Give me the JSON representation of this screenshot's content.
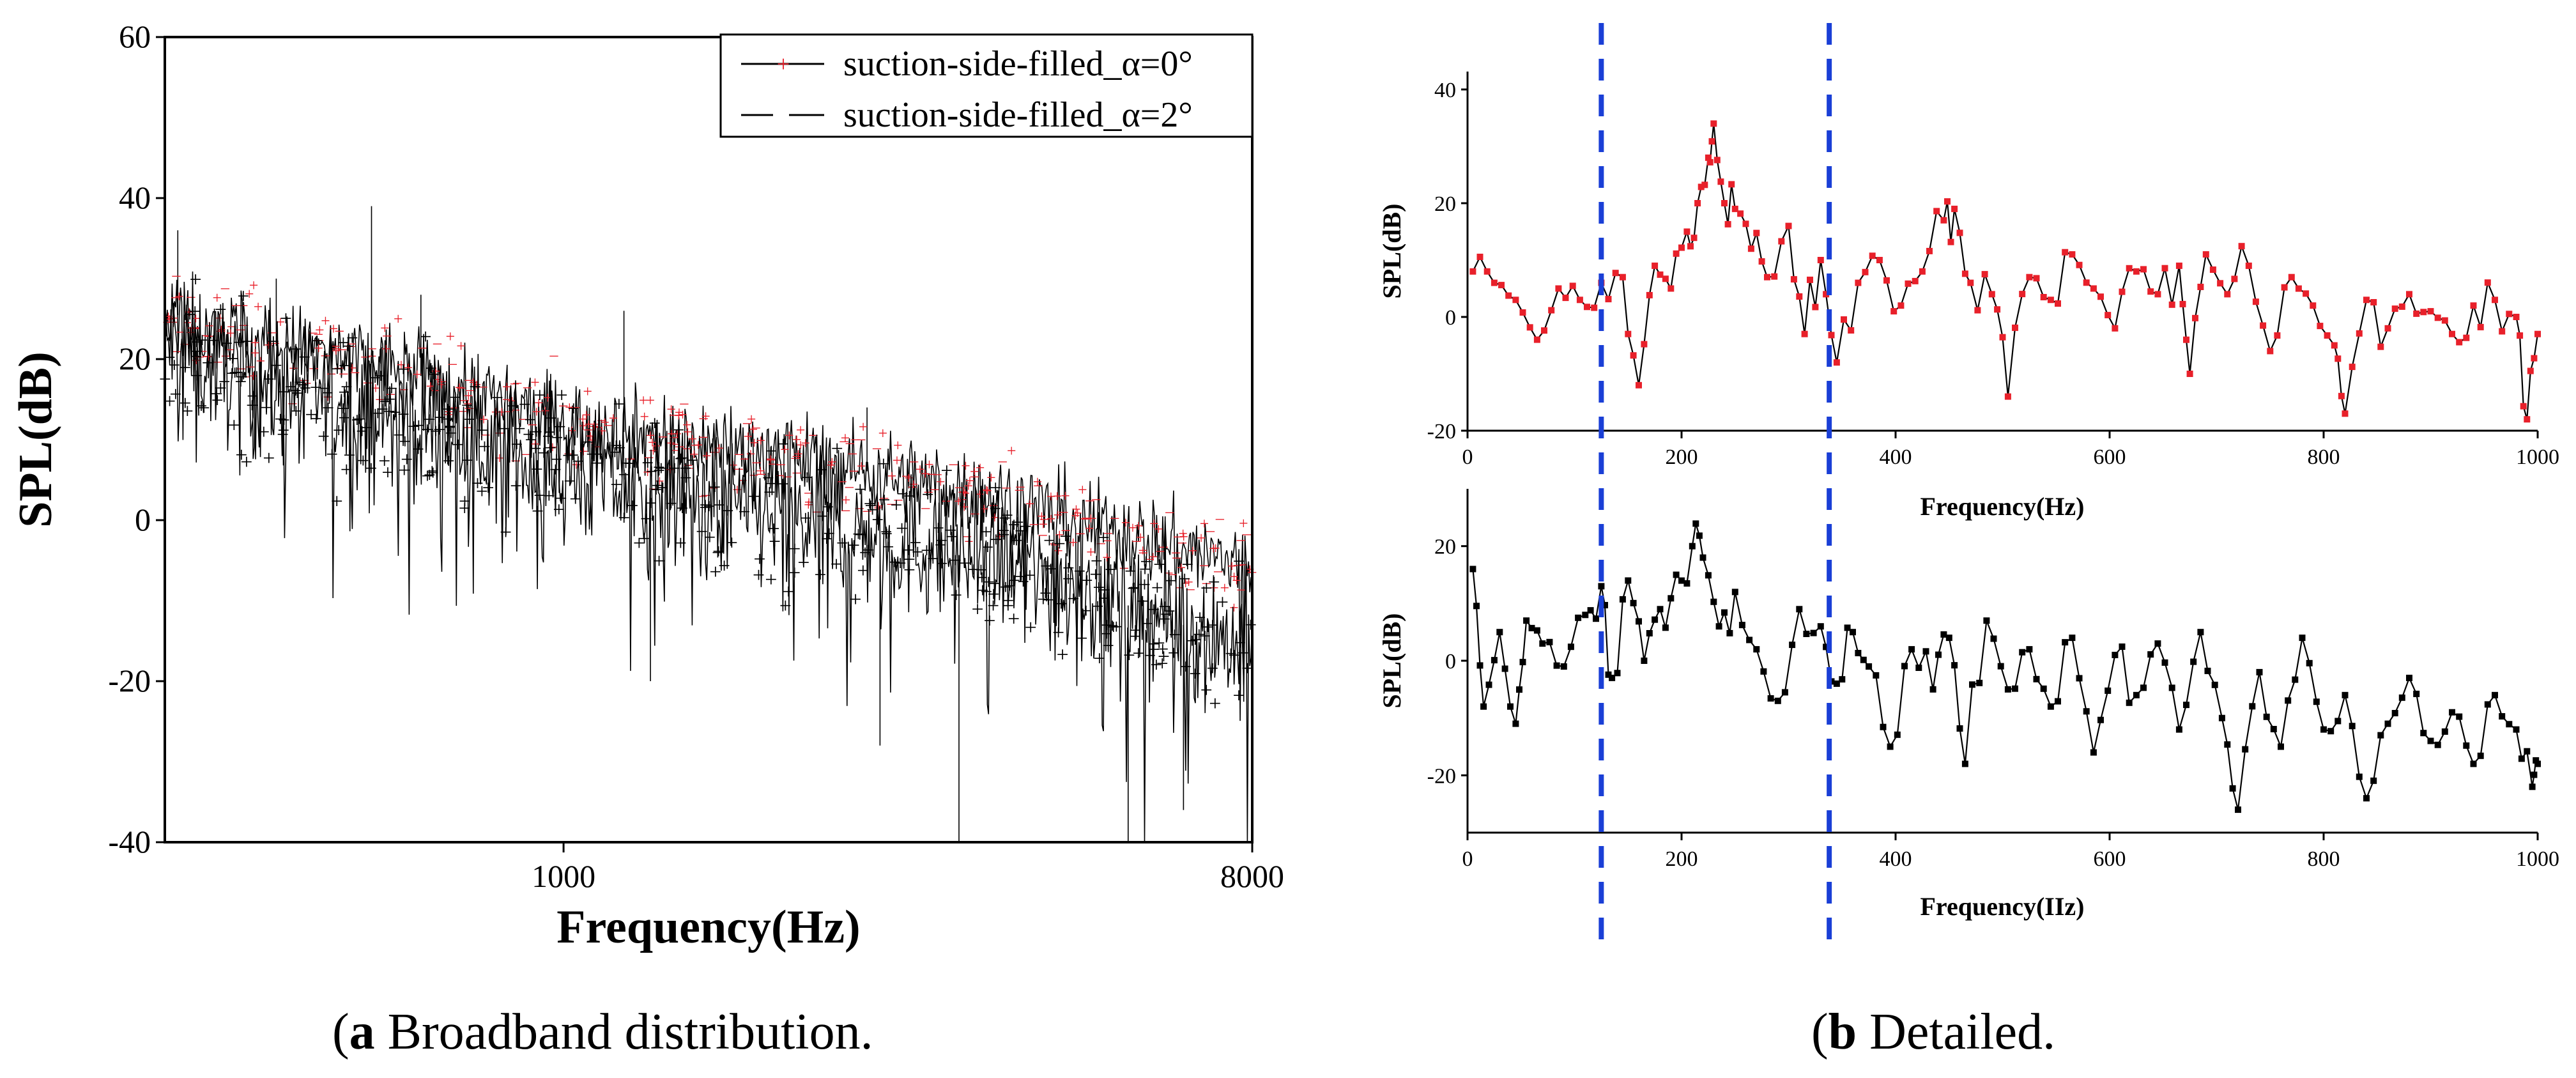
{
  "colors": {
    "alpha0": "#e8202a",
    "alpha2": "#000000",
    "marker_line": "#1a3fd6",
    "axis": "#000000"
  },
  "captions": {
    "a": {
      "letter": "a",
      "text": " Broadband distribution."
    },
    "b": {
      "letter": "b",
      "text": " Detailed."
    }
  },
  "chart_data": [
    {
      "id": "a",
      "type": "line",
      "xlabel": "Frequency(Hz)",
      "ylabel": "SPL(dB)",
      "xscale": "log",
      "xlim": [
        300,
        8000
      ],
      "ylim": [
        -40,
        60
      ],
      "xticks": [
        1000,
        8000
      ],
      "xtick_labels": [
        "1000",
        "8000"
      ],
      "yticks": [
        -40,
        -20,
        0,
        20,
        40,
        60
      ],
      "ytick_labels": [
        "-40",
        "-20",
        "0",
        "20",
        "40",
        "60"
      ],
      "legend_position": "top-right",
      "series": [
        {
          "name": "suction-side-filled_α=0°",
          "color": "#e8202a",
          "trend_x": [
            300,
            400,
            600,
            1000,
            2000,
            4000,
            8000
          ],
          "trend_y": [
            26,
            22,
            19,
            12,
            8,
            2,
            -6
          ],
          "peaks": [
            [
              312,
              36
            ],
            [
              420,
              30
            ],
            [
              560,
              39
            ],
            [
              650,
              28
            ],
            [
              1200,
              26
            ],
            [
              2500,
              14
            ]
          ]
        },
        {
          "name": "suction-side-filled_α=2°",
          "color": "#000000",
          "trend_x": [
            300,
            400,
            600,
            1000,
            2000,
            4000,
            8000
          ],
          "trend_y": [
            22,
            17,
            13,
            6,
            0,
            -6,
            -16
          ],
          "dips": [
            [
              1300,
              -20
            ],
            [
              2600,
              -28
            ],
            [
              3300,
              -40
            ],
            [
              5500,
              -40
            ],
            [
              6500,
              -36
            ]
          ]
        }
      ]
    },
    {
      "id": "b-top",
      "type": "line",
      "xlabel": "Frequency(Hz)",
      "ylabel": "SPL(dB)",
      "xlim": [
        0,
        1000
      ],
      "ylim": [
        -20,
        40
      ],
      "xticks": [
        0,
        200,
        400,
        600,
        800,
        1000
      ],
      "xtick_labels": [
        "0",
        "200",
        "400",
        "600",
        "800",
        "1000"
      ],
      "yticks": [
        -20,
        0,
        20,
        40
      ],
      "ytick_labels": [
        "-20",
        "0",
        "20",
        "40"
      ],
      "series": [
        {
          "color": "#e8202a",
          "x": [
            5,
            25,
            45,
            65,
            85,
            105,
            125,
            145,
            160,
            175,
            190,
            205,
            215,
            225,
            230,
            240,
            250,
            265,
            280,
            300,
            315,
            330,
            345,
            365,
            385,
            405,
            425,
            445,
            455,
            470,
            490,
            505,
            525,
            545,
            565,
            585,
            605,
            625,
            645,
            665,
            675,
            690,
            710,
            730,
            750,
            770,
            790,
            810,
            820,
            840,
            860,
            880,
            900,
            920,
            940,
            960,
            980,
            990,
            1000
          ],
          "y": [
            8,
            6,
            3,
            -4,
            5,
            3,
            6,
            7,
            -12,
            9,
            5,
            15,
            20,
            28,
            34,
            20,
            19,
            12,
            7,
            16,
            -3,
            10,
            -8,
            6,
            10,
            2,
            8,
            17,
            19,
            6,
            4,
            -14,
            7,
            3,
            11,
            5,
            -2,
            8,
            4,
            9,
            -10,
            11,
            4,
            9,
            -6,
            7,
            2,
            -5,
            -17,
            3,
            -2,
            4,
            1,
            -3,
            2,
            3,
            0,
            -18,
            -3
          ]
        }
      ]
    },
    {
      "id": "b-bottom",
      "type": "line",
      "xlabel": "Frequency(IIz)",
      "ylabel": "SPL(dB)",
      "xlim": [
        0,
        1000
      ],
      "ylim": [
        -30,
        30
      ],
      "xticks": [
        0,
        200,
        400,
        600,
        800,
        1000
      ],
      "xtick_labels": [
        "0",
        "200",
        "400",
        "600",
        "800",
        "1000"
      ],
      "yticks": [
        -20,
        0,
        20
      ],
      "ytick_labels": [
        "-20",
        "0",
        "20"
      ],
      "series": [
        {
          "color": "#000000",
          "x": [
            5,
            15,
            30,
            45,
            55,
            70,
            90,
            110,
            125,
            135,
            150,
            165,
            180,
            195,
            210,
            220,
            235,
            250,
            270,
            290,
            310,
            330,
            345,
            360,
            375,
            395,
            415,
            435,
            450,
            465,
            485,
            505,
            525,
            545,
            565,
            585,
            605,
            625,
            645,
            665,
            685,
            705,
            720,
            740,
            760,
            780,
            800,
            820,
            840,
            860,
            880,
            900,
            920,
            940,
            960,
            980,
            995,
            1000
          ],
          "y": [
            16,
            -8,
            5,
            -11,
            7,
            3,
            -1,
            8,
            13,
            -3,
            14,
            0,
            9,
            15,
            20,
            18,
            6,
            12,
            2,
            -7,
            9,
            6,
            -4,
            5,
            -1,
            -15,
            2,
            -5,
            4,
            -18,
            7,
            -5,
            2,
            -8,
            4,
            -16,
            1,
            -6,
            3,
            -12,
            5,
            -10,
            -26,
            -2,
            -15,
            4,
            -12,
            -6,
            -24,
            -11,
            -3,
            -14,
            -9,
            -18,
            -6,
            -12,
            -22,
            -18
          ]
        }
      ]
    }
  ],
  "markers": {
    "vertical_lines_x": [
      125,
      338
    ],
    "panel": "b"
  }
}
